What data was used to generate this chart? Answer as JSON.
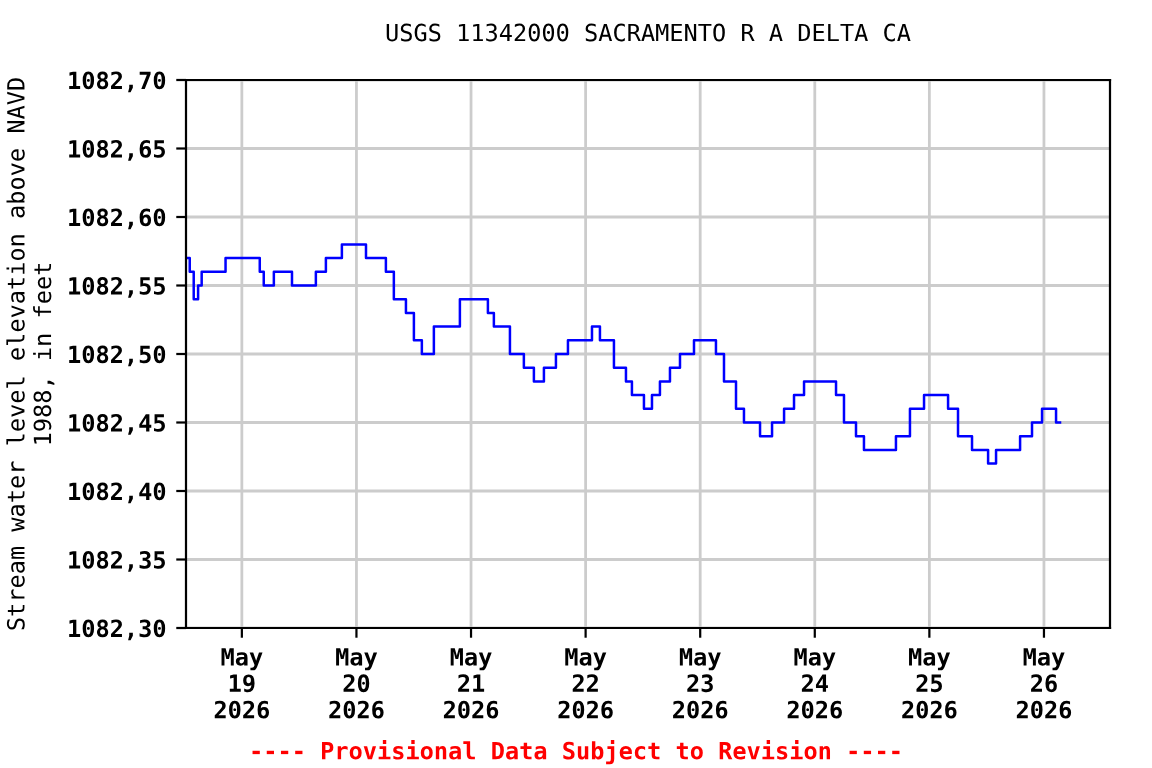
{
  "chart_data": {
    "type": "step",
    "title": "USGS 11342000 SACRAMENTO R A DELTA CA",
    "ylabel": "Stream water level elevation above NAVD\n1988, in feet",
    "x": [
      "2026-05-18T12:18",
      "2026-05-18T13:05",
      "2026-05-18T13:55",
      "2026-05-18T14:50",
      "2026-05-18T15:35",
      "2026-05-18T20:35",
      "2026-05-19T03:45",
      "2026-05-19T04:35",
      "2026-05-19T06:42",
      "2026-05-19T10:30",
      "2026-05-19T15:30",
      "2026-05-19T17:36",
      "2026-05-19T20:57",
      "2026-05-20T02:00",
      "2026-05-20T06:10",
      "2026-05-20T07:50",
      "2026-05-20T10:22",
      "2026-05-20T12:02",
      "2026-05-20T13:42",
      "2026-05-20T16:13",
      "2026-05-20T21:40",
      "2026-05-21T03:32",
      "2026-05-21T04:47",
      "2026-05-21T08:09",
      "2026-05-21T11:04",
      "2026-05-21T13:10",
      "2026-05-21T15:16",
      "2026-05-21T17:47",
      "2026-05-21T20:18",
      "2026-05-22T01:20",
      "2026-05-22T03:00",
      "2026-05-22T05:56",
      "2026-05-22T08:27",
      "2026-05-22T09:42",
      "2026-05-22T12:13",
      "2026-05-22T13:54",
      "2026-05-22T15:34",
      "2026-05-22T17:40",
      "2026-05-22T19:46",
      "2026-05-22T22:42",
      "2026-05-23T03:18",
      "2026-05-23T04:59",
      "2026-05-23T07:30",
      "2026-05-23T09:10",
      "2026-05-23T12:32",
      "2026-05-23T15:03",
      "2026-05-23T17:34",
      "2026-05-23T19:39",
      "2026-05-23T21:45",
      "2026-05-24T04:27",
      "2026-05-24T06:07",
      "2026-05-24T08:38",
      "2026-05-24T10:18",
      "2026-05-24T17:00",
      "2026-05-24T19:56",
      "2026-05-24T22:53",
      "2026-05-25T03:55",
      "2026-05-25T06:00",
      "2026-05-25T08:56",
      "2026-05-25T12:18",
      "2026-05-25T13:58",
      "2026-05-25T19:00",
      "2026-05-25T21:30",
      "2026-05-25T23:36",
      "2026-05-26T02:32",
      "2026-05-26T03:22"
    ],
    "series": [
      {
        "color": "#0000ff",
        "values": [
          1082.57,
          1082.56,
          1082.54,
          1082.55,
          1082.56,
          1082.57,
          1082.56,
          1082.55,
          1082.56,
          1082.55,
          1082.56,
          1082.57,
          1082.58,
          1082.57,
          1082.56,
          1082.54,
          1082.53,
          1082.51,
          1082.5,
          1082.52,
          1082.54,
          1082.53,
          1082.52,
          1082.5,
          1082.49,
          1082.48,
          1082.49,
          1082.5,
          1082.51,
          1082.52,
          1082.51,
          1082.49,
          1082.48,
          1082.47,
          1082.46,
          1082.47,
          1082.48,
          1082.49,
          1082.5,
          1082.51,
          1082.5,
          1082.48,
          1082.46,
          1082.45,
          1082.44,
          1082.45,
          1082.46,
          1082.47,
          1082.48,
          1082.47,
          1082.45,
          1082.44,
          1082.43,
          1082.44,
          1082.46,
          1082.47,
          1082.46,
          1082.44,
          1082.43,
          1082.42,
          1082.43,
          1082.44,
          1082.45,
          1082.46,
          1082.45,
          1082.45
        ]
      }
    ],
    "xlim": [
      "2026-05-18T12:18",
      "2026-05-26T13:50"
    ],
    "xticks": [
      {
        "value": "2026-05-19",
        "label": "May\n19\n2026"
      },
      {
        "value": "2026-05-20",
        "label": "May\n20\n2026"
      },
      {
        "value": "2026-05-21",
        "label": "May\n21\n2026"
      },
      {
        "value": "2026-05-22",
        "label": "May\n22\n2026"
      },
      {
        "value": "2026-05-23",
        "label": "May\n23\n2026"
      },
      {
        "value": "2026-05-24",
        "label": "May\n24\n2026"
      },
      {
        "value": "2026-05-25",
        "label": "May\n25\n2026"
      },
      {
        "value": "2026-05-26",
        "label": "May\n26\n2026"
      }
    ],
    "ylim": [
      1082.3,
      1082.7
    ],
    "yticks": [
      {
        "value": 1082.3,
        "label": "1082,30"
      },
      {
        "value": 1082.35,
        "label": "1082,35"
      },
      {
        "value": 1082.4,
        "label": "1082,40"
      },
      {
        "value": 1082.45,
        "label": "1082,45"
      },
      {
        "value": 1082.5,
        "label": "1082,50"
      },
      {
        "value": 1082.55,
        "label": "1082,55"
      },
      {
        "value": 1082.6,
        "label": "1082,60"
      },
      {
        "value": 1082.65,
        "label": "1082,65"
      },
      {
        "value": 1082.7,
        "label": "1082,70"
      }
    ],
    "grid": true,
    "annotations": [
      "---- Provisional Data Subject to Revision ----"
    ]
  }
}
